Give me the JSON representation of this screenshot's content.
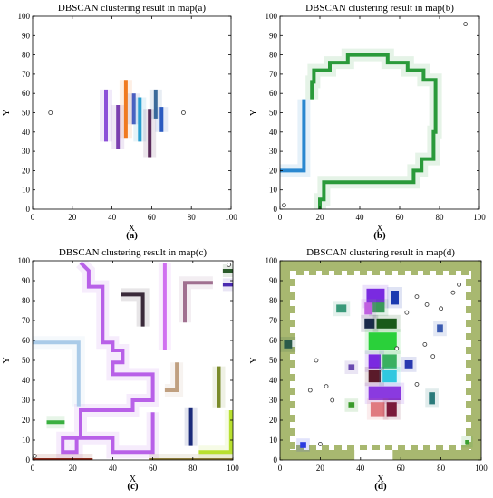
{
  "chart_data": [
    {
      "panel": "(a)",
      "type": "line",
      "title": "DBSCAN clustering result in map(a)",
      "xlabel": "X",
      "ylabel": "Y",
      "xlim": [
        0,
        100
      ],
      "ylim": [
        0,
        100
      ],
      "xticks": [
        0,
        20,
        40,
        60,
        80,
        100
      ],
      "yticks": [
        0,
        10,
        20,
        30,
        40,
        50,
        60,
        70,
        80,
        90,
        100
      ],
      "grid": false,
      "series": [
        {
          "color": "#8b4fd8",
          "x": [
            37,
            37
          ],
          "y": [
            35,
            62
          ]
        },
        {
          "color": "#7b3fb0",
          "x": [
            43,
            43
          ],
          "y": [
            31,
            54
          ]
        },
        {
          "color": "#f07a20",
          "x": [
            47,
            47
          ],
          "y": [
            37,
            67
          ]
        },
        {
          "color": "#4a5ec0",
          "x": [
            51,
            51
          ],
          "y": [
            44,
            60
          ]
        },
        {
          "color": "#2a9fd0",
          "x": [
            54,
            54
          ],
          "y": [
            35,
            58
          ]
        },
        {
          "color": "#5a2a5a",
          "x": [
            59,
            59
          ],
          "y": [
            27,
            52
          ]
        },
        {
          "color": "#3a6a9a",
          "x": [
            62,
            62
          ],
          "y": [
            47,
            62
          ]
        },
        {
          "color": "#2a5ac0",
          "x": [
            65,
            65
          ],
          "y": [
            40,
            53
          ]
        }
      ],
      "noise": [
        [
          9,
          50
        ],
        [
          76,
          50
        ]
      ]
    },
    {
      "panel": "(b)",
      "type": "line",
      "title": "DBSCAN clustering result in map(b)",
      "xlabel": "X",
      "ylabel": "Y",
      "xlim": [
        0,
        100
      ],
      "ylim": [
        0,
        100
      ],
      "xticks": [
        0,
        20,
        40,
        60,
        80,
        100
      ],
      "yticks": [
        0,
        10,
        20,
        30,
        40,
        50,
        60,
        70,
        80,
        90,
        100
      ],
      "grid": false,
      "series": [
        {
          "color": "#2a88d0",
          "x": [
            0,
            12,
            12
          ],
          "y": [
            20,
            20,
            57
          ]
        },
        {
          "color": "#2a9a3a",
          "x": [
            20,
            20,
            22,
            22,
            67,
            67,
            71,
            71,
            77,
            77,
            78,
            78,
            72,
            72,
            64,
            64,
            54,
            54,
            34,
            34,
            25,
            25,
            17,
            17,
            16,
            16
          ],
          "y": [
            0,
            5,
            5,
            14,
            14,
            20,
            20,
            26,
            26,
            40,
            40,
            67,
            67,
            72,
            72,
            76,
            76,
            80,
            80,
            76,
            76,
            72,
            72,
            66,
            66,
            57
          ]
        }
      ],
      "noise": [
        [
          2,
          2
        ],
        [
          93,
          96
        ]
      ]
    },
    {
      "panel": "(c)",
      "type": "line",
      "title": "DBSCAN clustering result in map(c)",
      "xlabel": "X",
      "ylabel": "Y",
      "xlim": [
        0,
        100
      ],
      "ylim": [
        0,
        100
      ],
      "xticks": [
        0,
        20,
        40,
        60,
        80,
        100
      ],
      "yticks": [
        0,
        10,
        20,
        30,
        40,
        50,
        60,
        70,
        80,
        90,
        100
      ],
      "grid": false,
      "series": [
        {
          "color": "#b860e8",
          "x": [
            24,
            28,
            28,
            35,
            35,
            40,
            40,
            45,
            45,
            40,
            40,
            60,
            60,
            50,
            50,
            24,
            24,
            15,
            15,
            22,
            22,
            40,
            40,
            60,
            60
          ],
          "y": [
            99,
            95,
            87,
            87,
            59,
            59,
            55,
            55,
            49,
            49,
            43,
            43,
            30,
            30,
            25,
            25,
            11,
            11,
            4,
            4,
            11,
            11,
            4,
            4,
            24
          ]
        },
        {
          "color": "#aacbe8",
          "x": [
            0,
            23,
            23
          ],
          "y": [
            59,
            59,
            27
          ]
        },
        {
          "color": "#d070f0",
          "x": [
            66,
            66
          ],
          "y": [
            99,
            55
          ]
        },
        {
          "color": "#3a2a3a",
          "x": [
            44,
            55,
            55
          ],
          "y": [
            83,
            83,
            67
          ]
        },
        {
          "color": "#a07090",
          "x": [
            76,
            76,
            90
          ],
          "y": [
            69,
            89,
            89
          ]
        },
        {
          "color": "#c0a080",
          "x": [
            72,
            72,
            66
          ],
          "y": [
            49,
            35,
            35
          ]
        },
        {
          "color": "#7a8a2a",
          "x": [
            93,
            93
          ],
          "y": [
            47,
            26
          ]
        },
        {
          "color": "#1a2a7a",
          "x": [
            79,
            79
          ],
          "y": [
            26,
            7
          ]
        },
        {
          "color": "#b8e030",
          "x": [
            83,
            99,
            99
          ],
          "y": [
            4,
            4,
            25
          ]
        },
        {
          "color": "#3ab040",
          "x": [
            7,
            16
          ],
          "y": [
            19,
            19
          ]
        },
        {
          "color": "#8a2a1a",
          "x": [
            0,
            30
          ],
          "y": [
            0,
            0
          ]
        },
        {
          "color": "#8a7a3a",
          "x": [
            58,
            100
          ],
          "y": [
            0,
            0
          ]
        },
        {
          "color": "#2a5a2a",
          "x": [
            95,
            100
          ],
          "y": [
            95,
            95
          ]
        },
        {
          "color": "#4a2ab0",
          "x": [
            95,
            100
          ],
          "y": [
            88,
            88
          ]
        }
      ],
      "noise": [
        [
          98,
          98
        ],
        [
          1,
          2
        ]
      ]
    },
    {
      "panel": "(d)",
      "type": "scatter",
      "title": "DBSCAN clustering result in map(d)",
      "xlabel": "X",
      "ylabel": "Y",
      "xlim": [
        0,
        100
      ],
      "ylim": [
        0,
        100
      ],
      "xticks": [
        0,
        20,
        40,
        60,
        80,
        100
      ],
      "yticks": [
        0,
        10,
        20,
        30,
        40,
        50,
        60,
        70,
        80,
        90,
        100
      ],
      "grid": false,
      "border_color": "#a8b870",
      "clusters": [
        {
          "color": "#7a2ae0",
          "x": [
            43,
            52
          ],
          "y": [
            78,
            86
          ]
        },
        {
          "color": "#1a3ab0",
          "x": [
            55,
            59
          ],
          "y": [
            78,
            85
          ]
        },
        {
          "color": "#3a9a5a",
          "x": [
            46,
            52
          ],
          "y": [
            74,
            79
          ]
        },
        {
          "color": "#c060e0",
          "x": [
            42,
            46
          ],
          "y": [
            73,
            79
          ]
        },
        {
          "color": "#1a2a4a",
          "x": [
            42,
            47
          ],
          "y": [
            66,
            71
          ]
        },
        {
          "color": "#1a5a1a",
          "x": [
            48,
            58
          ],
          "y": [
            66,
            71
          ]
        },
        {
          "color": "#2ad03a",
          "x": [
            44,
            58
          ],
          "y": [
            55,
            64
          ]
        },
        {
          "color": "#7a2ae0",
          "x": [
            44,
            50
          ],
          "y": [
            46,
            53
          ]
        },
        {
          "color": "#3ab060",
          "x": [
            51,
            58
          ],
          "y": [
            46,
            53
          ]
        },
        {
          "color": "#5a1a2a",
          "x": [
            44,
            50
          ],
          "y": [
            39,
            45
          ]
        },
        {
          "color": "#30c8e0",
          "x": [
            51,
            58
          ],
          "y": [
            39,
            45
          ]
        },
        {
          "color": "#8a3ae0",
          "x": [
            44,
            60
          ],
          "y": [
            30,
            37
          ]
        },
        {
          "color": "#e07a80",
          "x": [
            45,
            52
          ],
          "y": [
            22,
            29
          ]
        },
        {
          "color": "#7a1a3a",
          "x": [
            53,
            58
          ],
          "y": [
            22,
            29
          ]
        },
        {
          "color": "#3a9a7a",
          "x": [
            28,
            33
          ],
          "y": [
            74,
            78
          ]
        },
        {
          "color": "#2a5a4a",
          "x": [
            2,
            6
          ],
          "y": [
            56,
            60
          ]
        },
        {
          "color": "#6a4ab0",
          "x": [
            34,
            37
          ],
          "y": [
            45,
            48
          ]
        },
        {
          "color": "#3a9a2a",
          "x": [
            34,
            37
          ],
          "y": [
            26,
            29
          ]
        },
        {
          "color": "#2a3ab0",
          "x": [
            62,
            66
          ],
          "y": [
            46,
            50
          ]
        },
        {
          "color": "#2a7a7a",
          "x": [
            74,
            77
          ],
          "y": [
            28,
            34
          ]
        },
        {
          "color": "#3a5ab0",
          "x": [
            78,
            81
          ],
          "y": [
            64,
            68
          ]
        },
        {
          "color": "#2a3ae0",
          "x": [
            10,
            13
          ],
          "y": [
            6,
            9
          ]
        },
        {
          "color": "#3aa030",
          "x": [
            92,
            94
          ],
          "y": [
            8,
            10
          ]
        }
      ],
      "noise": [
        [
          18,
          50
        ],
        [
          23,
          37
        ],
        [
          26,
          30
        ],
        [
          20,
          8
        ],
        [
          68,
          82
        ],
        [
          73,
          78
        ],
        [
          86,
          84
        ],
        [
          80,
          76
        ],
        [
          63,
          74
        ],
        [
          72,
          58
        ],
        [
          76,
          52
        ],
        [
          68,
          38
        ],
        [
          89,
          88
        ],
        [
          58,
          56
        ],
        [
          15,
          35
        ]
      ]
    }
  ]
}
